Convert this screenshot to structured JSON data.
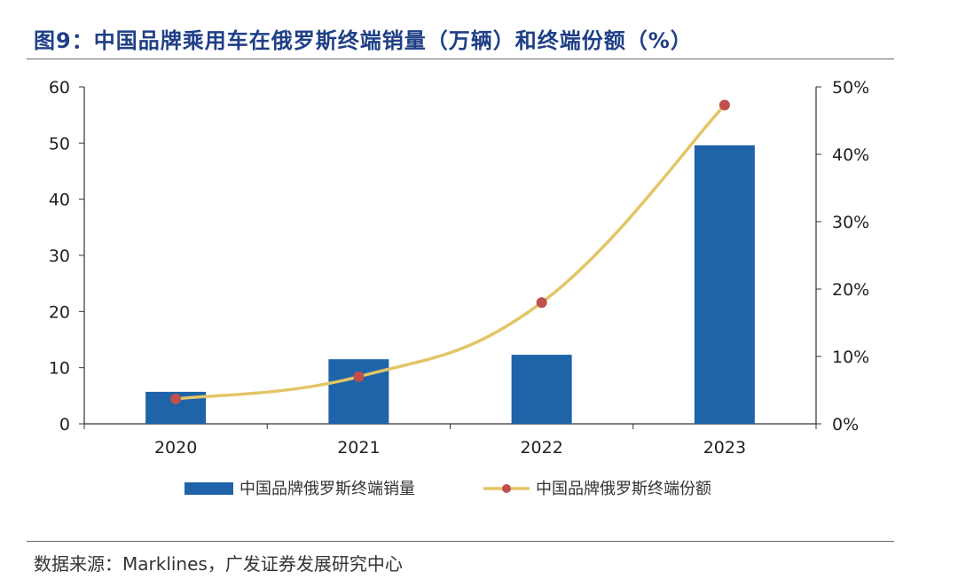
{
  "title": "图9：中国品牌乘用车在俄罗斯终端销量（万辆）和终端份额（%）",
  "source": "数据来源：Marklines，广发证券发展研究中心",
  "chart_data": {
    "type": "bar+line",
    "categories": [
      "2020",
      "2021",
      "2022",
      "2023"
    ],
    "series": [
      {
        "name": "中国品牌俄罗斯终端销量",
        "type": "bar",
        "axis": "left",
        "values": [
          5.7,
          11.5,
          12.3,
          49.6
        ],
        "color": "#1f63a8"
      },
      {
        "name": "中国品牌俄罗斯终端份额",
        "type": "line",
        "axis": "right",
        "values": [
          3.7,
          7.0,
          18.0,
          47.3
        ],
        "color": "#e3c567",
        "marker_color": "#c0504d"
      }
    ],
    "y_left": {
      "min": 0,
      "max": 60,
      "ticks": [
        "0",
        "10",
        "20",
        "30",
        "40",
        "50",
        "60"
      ]
    },
    "y_right": {
      "min": 0,
      "max": 50,
      "ticks": [
        "0%",
        "10%",
        "20%",
        "30%",
        "40%",
        "50%"
      ]
    },
    "legend_position": "bottom",
    "grid": false
  }
}
